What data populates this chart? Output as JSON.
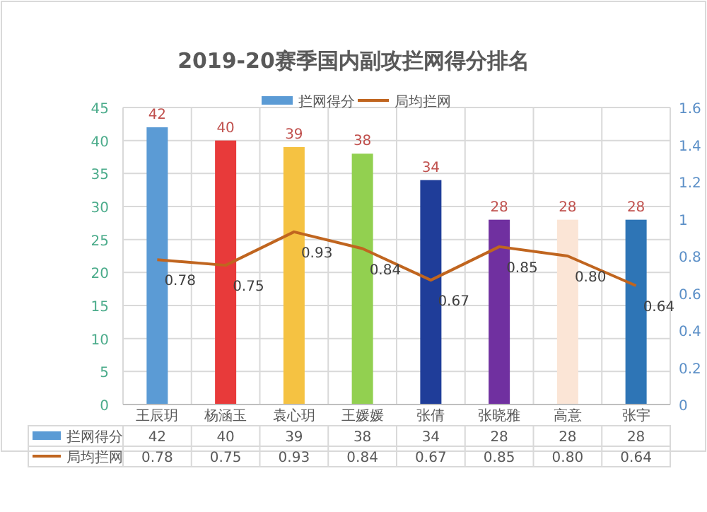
{
  "chart_data": {
    "type": "bar",
    "title": "2019-20赛季国内副攻拦网得分排名",
    "categories": [
      "王辰玥",
      "杨涵玉",
      "袁心玥",
      "王媛媛",
      "张倩",
      "张晓雅",
      "高意",
      "张宇"
    ],
    "series": [
      {
        "name": "拦网得分",
        "color": "#5b9bd5",
        "colors": [
          "#5b9bd5",
          "#e83a3a",
          "#f5c242",
          "#92d050",
          "#1f3d99",
          "#7030a0",
          "#fbe5d6",
          "#2e75b6"
        ],
        "values": [
          42,
          40,
          39,
          38,
          34,
          28,
          28,
          28
        ],
        "value_labels": [
          "42",
          "40",
          "39",
          "38",
          "34",
          "28",
          "28",
          "28"
        ]
      },
      {
        "name": "局均拦网",
        "type": "line",
        "axis": "y2",
        "color": "#c0651f",
        "values": [
          0.78,
          0.75,
          0.93,
          0.84,
          0.67,
          0.85,
          0.8,
          0.64
        ],
        "value_labels": [
          "0.78",
          "0.75",
          "0.93",
          "0.84",
          "0.67",
          "0.85",
          "0.80",
          "0.64"
        ]
      }
    ],
    "ylim": [
      0,
      45
    ],
    "yticks": [
      0,
      5,
      10,
      15,
      20,
      25,
      30,
      35,
      40,
      45
    ],
    "y2lim": [
      0,
      1.6
    ],
    "y2ticks": [
      0,
      0.2,
      0.4,
      0.6,
      0.8,
      1,
      1.2,
      1.4,
      1.6
    ],
    "grid": true,
    "legend": "top"
  }
}
